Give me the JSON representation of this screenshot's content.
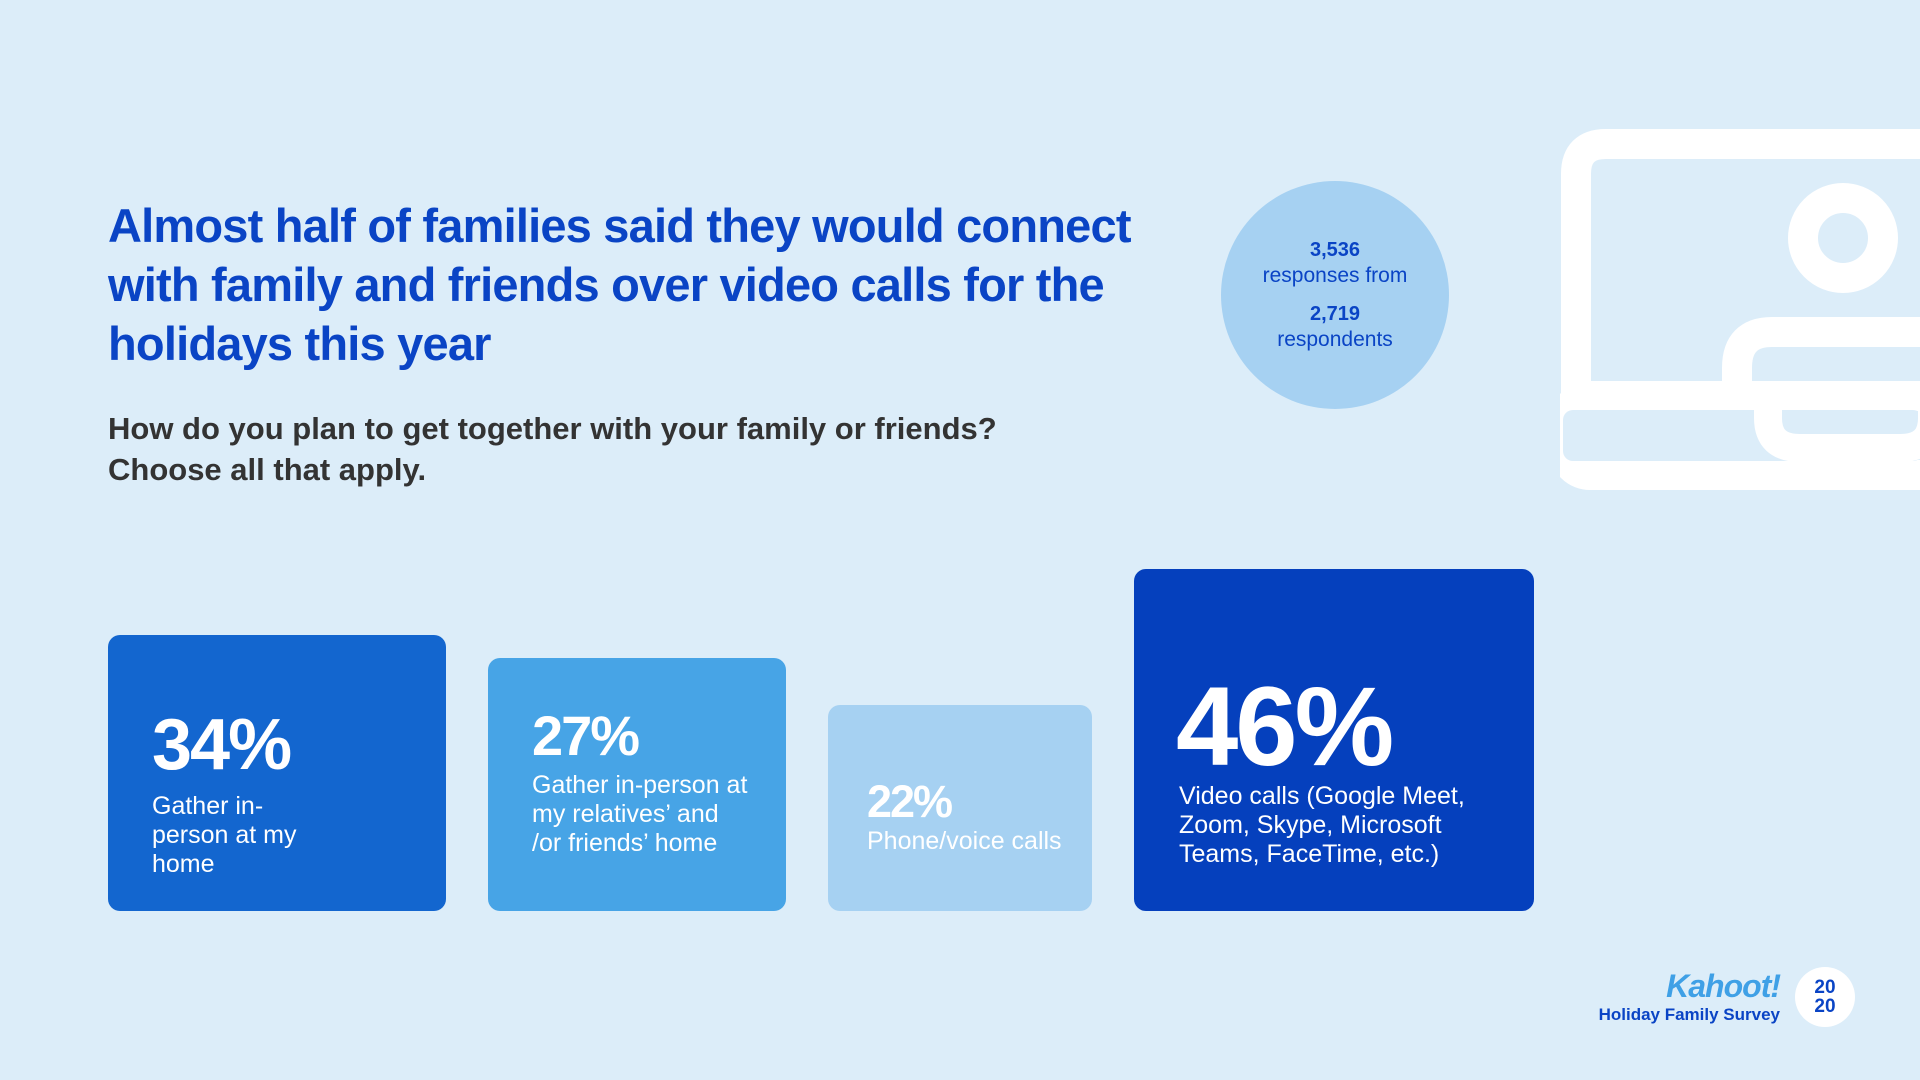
{
  "header": {
    "headline": "Almost half of families said they would connect with family and friends over video calls for the holidays this year",
    "question": "How do you plan to get together with your family or friends? Choose all that apply."
  },
  "stats": {
    "responses": "3,536",
    "responses_label": "responses from",
    "respondents": "2,719",
    "respondents_label": "respondents"
  },
  "chart_data": {
    "type": "bar",
    "categories": [
      "Gather in-person at my home",
      "Gather in-person at my relatives’ and /or friends’ home",
      "Phone/voice calls",
      "Video calls (Google Meet, Zoom, Skype, Microsoft Teams, FaceTime, etc.)"
    ],
    "values": [
      34,
      27,
      22,
      46
    ],
    "value_labels": [
      "34%",
      "27%",
      "22%",
      "46%"
    ],
    "colors": [
      "#1366cf",
      "#47a4e6",
      "#a6d1f2",
      "#0540bd"
    ]
  },
  "branding": {
    "logo": "Kahoot!",
    "survey": "Holiday Family Survey",
    "year_top": "20",
    "year_bottom": "20"
  },
  "icons": {
    "illustration": "laptop-video-call-icon"
  }
}
